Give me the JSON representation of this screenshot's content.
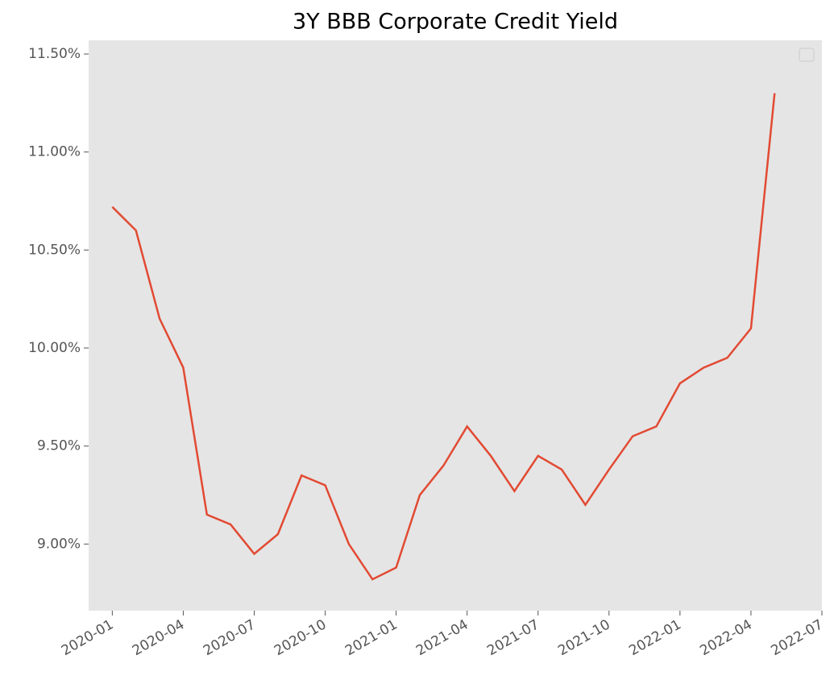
{
  "chart_data": {
    "type": "line",
    "title": "3Y BBB Corporate Credit Yield",
    "x": [
      "2020-01",
      "2020-02",
      "2020-03",
      "2020-04",
      "2020-05",
      "2020-06",
      "2020-07",
      "2020-08",
      "2020-09",
      "2020-10",
      "2020-11",
      "2020-12",
      "2021-01",
      "2021-02",
      "2021-03",
      "2021-04",
      "2021-05",
      "2021-06",
      "2021-07",
      "2021-08",
      "2021-09",
      "2021-10",
      "2021-11",
      "2021-12",
      "2022-01",
      "2022-02",
      "2022-03",
      "2022-04",
      "2022-05"
    ],
    "series": [
      {
        "color": "#e24a33",
        "values": [
          10.72,
          10.6,
          10.15,
          9.9,
          9.15,
          9.1,
          8.95,
          9.05,
          9.35,
          9.3,
          9.0,
          8.82,
          8.88,
          9.25,
          9.4,
          9.6,
          9.45,
          9.27,
          9.45,
          9.38,
          9.2,
          9.38,
          9.55,
          9.6,
          9.82,
          9.9,
          9.95,
          10.1,
          11.3
        ]
      }
    ],
    "xlim": [
      "2019-12",
      "2022-07"
    ],
    "xticks": [
      "2020-01",
      "2020-04",
      "2020-07",
      "2020-10",
      "2021-01",
      "2021-04",
      "2021-07",
      "2021-10",
      "2022-01",
      "2022-04",
      "2022-07"
    ],
    "ylim": [
      8.66,
      11.57
    ],
    "yticks": [
      {
        "value": 9,
        "label": "9.00%"
      },
      {
        "value": 9.5,
        "label": "9.50%"
      },
      {
        "value": 10,
        "label": "10.00%"
      },
      {
        "value": 10.5,
        "label": "10.50%"
      },
      {
        "value": 11,
        "label": "11.00%"
      },
      {
        "value": 11.5,
        "label": "11.50%"
      }
    ],
    "grid": false,
    "legend": "upper right",
    "background": "#e5e5e5"
  }
}
